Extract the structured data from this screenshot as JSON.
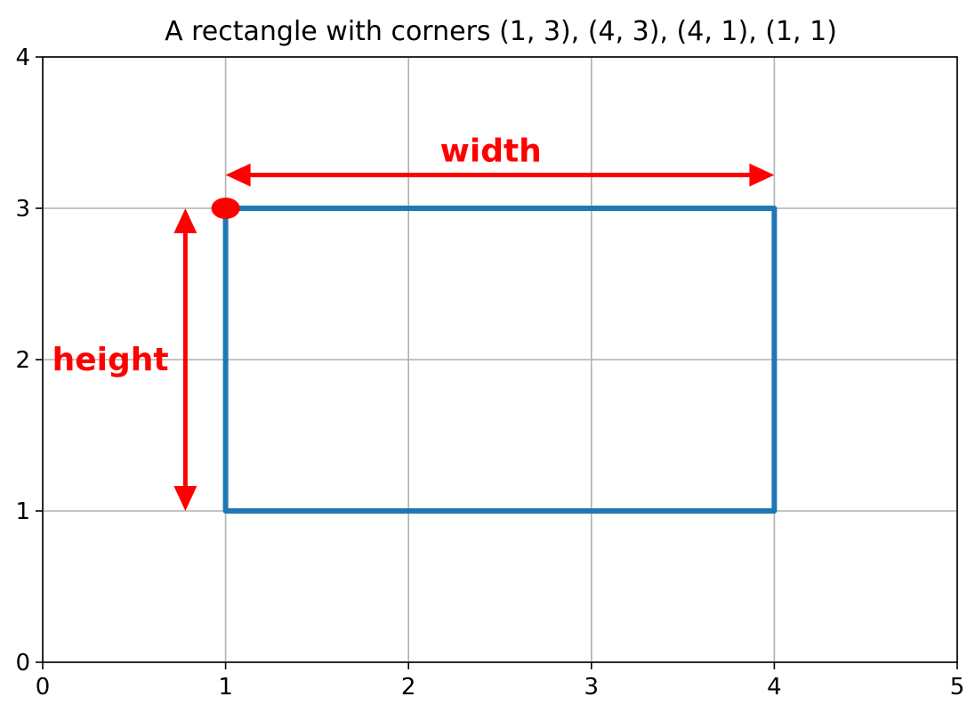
{
  "chart_data": {
    "type": "line",
    "title": "A rectangle with corners (1, 3), (4, 3), (4, 1), (1, 1)",
    "xlabel": "",
    "ylabel": "",
    "xlim": [
      0,
      5
    ],
    "ylim": [
      0,
      4
    ],
    "xticks": [
      0,
      1,
      2,
      3,
      4,
      5
    ],
    "yticks": [
      0,
      1,
      2,
      3,
      4
    ],
    "grid": true,
    "series": [
      {
        "color": "#1f77b4",
        "x": [
          1,
          4,
          4,
          1,
          1
        ],
        "y": [
          3,
          3,
          1,
          1,
          3
        ]
      }
    ],
    "markers": [
      {
        "x": 1,
        "y": 3,
        "color": "#ff0000"
      }
    ],
    "annotations": [
      {
        "text": "width",
        "color": "#ff0000",
        "arrow_from": [
          1,
          3.22
        ],
        "arrow_to": [
          4,
          3.22
        ],
        "label_at": [
          2.45,
          3.38
        ]
      },
      {
        "text": "height",
        "color": "#ff0000",
        "arrow_from": [
          0.78,
          3
        ],
        "arrow_to": [
          0.78,
          1
        ],
        "label_at": [
          0.37,
          2
        ]
      }
    ]
  }
}
